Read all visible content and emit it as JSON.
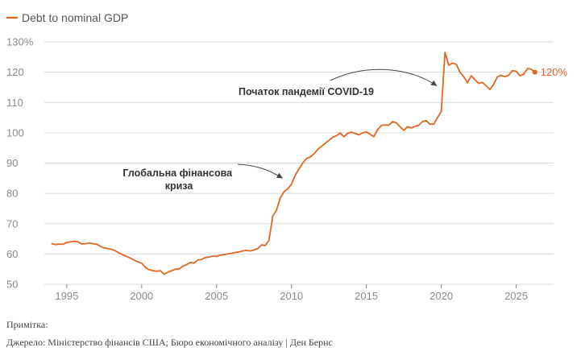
{
  "colors": {
    "series": "#e3661f",
    "grid": "#d9d9d9",
    "axis_text": "#8a8a8a",
    "annotation_text": "#333333",
    "arrow": "#444444"
  },
  "chart_data": {
    "type": "line",
    "title": "",
    "xlabel": "",
    "ylabel": "",
    "xlim": [
      1993.5,
      2027.5
    ],
    "ylim": [
      50,
      130
    ],
    "y_unit_on_top_tick": "%",
    "grid": "horizontal",
    "legend_position": "top-left",
    "x_ticks": [
      1995,
      2000,
      2005,
      2010,
      2015,
      2020,
      2025
    ],
    "y_ticks": [
      50,
      60,
      70,
      80,
      90,
      100,
      110,
      120,
      130
    ],
    "series": [
      {
        "name": "Debt to nominal GDP",
        "end_label": "120%",
        "points": [
          [
            1994.0,
            63.4
          ],
          [
            1994.25,
            63.1
          ],
          [
            1994.5,
            63.3
          ],
          [
            1994.75,
            63.2
          ],
          [
            1995.0,
            63.8
          ],
          [
            1995.25,
            64.0
          ],
          [
            1995.5,
            64.2
          ],
          [
            1995.75,
            64.0
          ],
          [
            1996.0,
            63.3
          ],
          [
            1996.25,
            63.4
          ],
          [
            1996.5,
            63.6
          ],
          [
            1996.75,
            63.4
          ],
          [
            1997.0,
            63.2
          ],
          [
            1997.25,
            62.5
          ],
          [
            1997.5,
            62.0
          ],
          [
            1997.75,
            61.8
          ],
          [
            1998.0,
            61.5
          ],
          [
            1998.25,
            61.0
          ],
          [
            1998.5,
            60.3
          ],
          [
            1998.75,
            59.7
          ],
          [
            1999.0,
            59.2
          ],
          [
            1999.25,
            58.6
          ],
          [
            1999.5,
            58.0
          ],
          [
            1999.75,
            57.4
          ],
          [
            2000.0,
            57.0
          ],
          [
            2000.25,
            55.5
          ],
          [
            2000.5,
            54.8
          ],
          [
            2000.75,
            54.5
          ],
          [
            2001.0,
            54.3
          ],
          [
            2001.25,
            54.5
          ],
          [
            2001.5,
            53.3
          ],
          [
            2001.75,
            54.0
          ],
          [
            2002.0,
            54.5
          ],
          [
            2002.25,
            55.0
          ],
          [
            2002.5,
            55.0
          ],
          [
            2002.75,
            56.0
          ],
          [
            2003.0,
            56.5
          ],
          [
            2003.25,
            57.2
          ],
          [
            2003.5,
            57.0
          ],
          [
            2003.75,
            58.0
          ],
          [
            2004.0,
            58.2
          ],
          [
            2004.25,
            58.8
          ],
          [
            2004.5,
            59.0
          ],
          [
            2004.75,
            59.3
          ],
          [
            2005.0,
            59.2
          ],
          [
            2005.25,
            59.6
          ],
          [
            2005.5,
            59.8
          ],
          [
            2005.75,
            60.0
          ],
          [
            2006.0,
            60.2
          ],
          [
            2006.25,
            60.5
          ],
          [
            2006.5,
            60.7
          ],
          [
            2006.75,
            61.0
          ],
          [
            2007.0,
            61.2
          ],
          [
            2007.25,
            61.0
          ],
          [
            2007.5,
            61.3
          ],
          [
            2007.75,
            61.8
          ],
          [
            2008.0,
            63.0
          ],
          [
            2008.25,
            62.8
          ],
          [
            2008.5,
            64.5
          ],
          [
            2008.75,
            72.5
          ],
          [
            2009.0,
            74.5
          ],
          [
            2009.25,
            78.5
          ],
          [
            2009.5,
            80.5
          ],
          [
            2009.75,
            81.5
          ],
          [
            2010.0,
            83.0
          ],
          [
            2010.25,
            86.0
          ],
          [
            2010.5,
            88.0
          ],
          [
            2010.75,
            90.0
          ],
          [
            2011.0,
            91.5
          ],
          [
            2011.25,
            92.0
          ],
          [
            2011.5,
            93.0
          ],
          [
            2011.75,
            94.5
          ],
          [
            2012.0,
            95.5
          ],
          [
            2012.25,
            96.5
          ],
          [
            2012.5,
            97.5
          ],
          [
            2012.75,
            98.5
          ],
          [
            2013.0,
            99.0
          ],
          [
            2013.25,
            100.0
          ],
          [
            2013.5,
            98.7
          ],
          [
            2013.75,
            99.8
          ],
          [
            2014.0,
            100.2
          ],
          [
            2014.25,
            99.8
          ],
          [
            2014.5,
            99.3
          ],
          [
            2014.75,
            100.0
          ],
          [
            2015.0,
            100.3
          ],
          [
            2015.25,
            99.5
          ],
          [
            2015.5,
            98.7
          ],
          [
            2015.75,
            101.0
          ],
          [
            2016.0,
            102.4
          ],
          [
            2016.25,
            102.6
          ],
          [
            2016.5,
            102.5
          ],
          [
            2016.75,
            103.7
          ],
          [
            2017.0,
            103.3
          ],
          [
            2017.25,
            102.0
          ],
          [
            2017.5,
            100.8
          ],
          [
            2017.75,
            102.0
          ],
          [
            2018.0,
            101.6
          ],
          [
            2018.25,
            102.1
          ],
          [
            2018.5,
            102.5
          ],
          [
            2018.75,
            103.7
          ],
          [
            2019.0,
            104.0
          ],
          [
            2019.25,
            102.8
          ],
          [
            2019.5,
            102.8
          ],
          [
            2019.75,
            105.0
          ],
          [
            2020.0,
            107.0
          ],
          [
            2020.25,
            126.5
          ],
          [
            2020.5,
            122.3
          ],
          [
            2020.75,
            123.0
          ],
          [
            2021.0,
            122.6
          ],
          [
            2021.25,
            120.0
          ],
          [
            2021.5,
            118.5
          ],
          [
            2021.75,
            116.5
          ],
          [
            2022.0,
            118.8
          ],
          [
            2022.25,
            117.5
          ],
          [
            2022.5,
            116.3
          ],
          [
            2022.75,
            116.6
          ],
          [
            2023.0,
            115.5
          ],
          [
            2023.25,
            114.3
          ],
          [
            2023.5,
            116.0
          ],
          [
            2023.75,
            118.5
          ],
          [
            2024.0,
            119.0
          ],
          [
            2024.25,
            118.5
          ],
          [
            2024.5,
            119.0
          ],
          [
            2024.75,
            120.5
          ],
          [
            2025.0,
            120.3
          ],
          [
            2025.25,
            118.8
          ],
          [
            2025.5,
            119.3
          ],
          [
            2025.75,
            121.2
          ],
          [
            2026.0,
            121.0
          ],
          [
            2026.25,
            120.0
          ]
        ]
      }
    ],
    "annotations": [
      {
        "id": "gfc",
        "lines": [
          "Глобальна фінансова",
          "криза"
        ],
        "target": [
          2009.4,
          85.0
        ]
      },
      {
        "id": "covid",
        "lines": [
          "Початок пандемії COVID-19"
        ],
        "target": [
          2019.7,
          115.5
        ]
      }
    ]
  },
  "footer": {
    "note": "Примітка:",
    "source": "Джерело: Міністерство фінансів США; Бюро економічного аналізу | Ден Бернс"
  }
}
